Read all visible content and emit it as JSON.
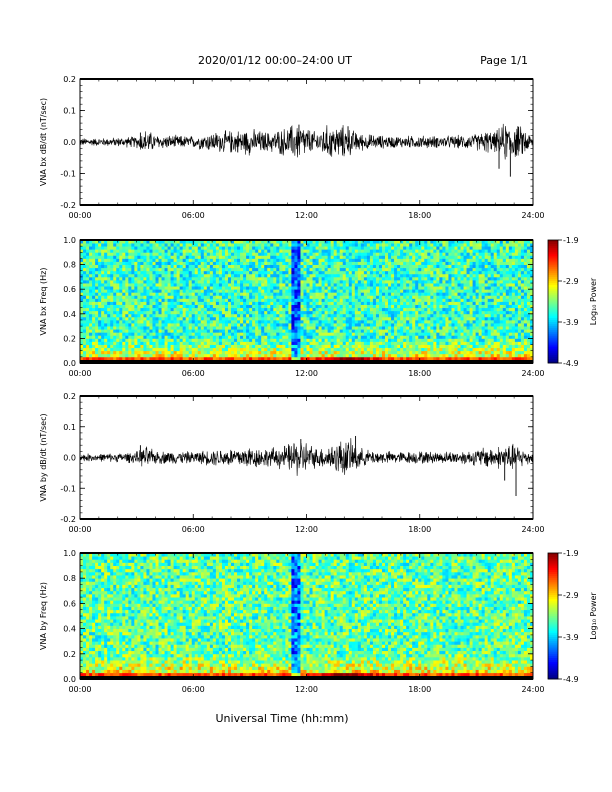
{
  "header": {
    "title": "2020/01/12  00:00–24:00 UT",
    "page": "Page 1/1"
  },
  "xaxis_label": "Universal Time (hh:mm)",
  "chart_data": [
    {
      "type": "line",
      "ylabel": "VNA bx dB/dt (nT/sec)",
      "ylim": [
        -0.2,
        0.2
      ],
      "yticks": [
        -0.2,
        -0.1,
        0.0,
        0.1,
        0.2
      ],
      "ytick_labels": [
        "-0.2",
        "-0.1",
        "0.0",
        "0.1",
        "0.2"
      ],
      "xlim": [
        0,
        24
      ],
      "xticks": [
        0,
        6,
        12,
        18,
        24
      ],
      "xtick_labels": [
        "00:00",
        "06:00",
        "12:00",
        "18:00",
        "24:00"
      ],
      "line_color": "#000000",
      "x_hours": [
        0,
        1,
        2,
        3,
        3.5,
        4,
        5,
        6,
        7,
        8,
        9,
        10,
        11,
        11.5,
        12,
        12.5,
        13,
        14,
        14.5,
        15,
        16,
        17,
        18,
        19,
        20,
        21,
        21.5,
        22,
        22.5,
        23,
        23.5,
        24
      ],
      "y_envelope": [
        0.012,
        0.012,
        0.014,
        0.018,
        0.04,
        0.022,
        0.02,
        0.018,
        0.03,
        0.035,
        0.04,
        0.03,
        0.045,
        0.06,
        0.045,
        0.03,
        0.05,
        0.05,
        0.035,
        0.025,
        0.02,
        0.018,
        0.02,
        0.018,
        0.02,
        0.025,
        0.035,
        0.03,
        0.06,
        0.05,
        0.045,
        0.015
      ],
      "spikes": [
        {
          "x": 3.2,
          "y": 0.03
        },
        {
          "x": 11.6,
          "y": 0.055
        },
        {
          "x": 14.2,
          "y": 0.05
        },
        {
          "x": 22.2,
          "y": -0.085
        },
        {
          "x": 22.8,
          "y": -0.11
        },
        {
          "x": 23.2,
          "y": 0.05
        }
      ]
    },
    {
      "type": "heatmap",
      "ylabel": "VNA bx Freq (Hz)",
      "ylim": [
        0.0,
        1.0
      ],
      "yticks": [
        0.0,
        0.2,
        0.4,
        0.6,
        0.8,
        1.0
      ],
      "ytick_labels": [
        "0.0",
        "0.2",
        "0.4",
        "0.6",
        "0.8",
        "1.0"
      ],
      "xlim": [
        0,
        24
      ],
      "xticks": [
        0,
        6,
        12,
        18,
        24
      ],
      "xtick_labels": [
        "00:00",
        "06:00",
        "12:00",
        "18:00",
        "24:00"
      ],
      "colorbar": {
        "label": "Log₁₀ Power",
        "range": [
          -4.9,
          -1.9
        ],
        "tick_labels": [
          "-1.9",
          "-2.9",
          "-3.9",
          "-4.9"
        ]
      },
      "typical_log_power": -3.6,
      "low_freq_log_power": -2.6,
      "notable_features": [
        {
          "x_hours": 11.5,
          "description": "Dark vertical band (low power) across all frequencies"
        },
        {
          "x_hours": 14.2,
          "description": "Enhanced power near 0 Hz"
        }
      ]
    },
    {
      "type": "line",
      "ylabel": "VNA by dB/dt (nT/sec)",
      "ylim": [
        -0.2,
        0.2
      ],
      "yticks": [
        -0.2,
        -0.1,
        0.0,
        0.1,
        0.2
      ],
      "ytick_labels": [
        "-0.2",
        "-0.1",
        "0.0",
        "0.1",
        "0.2"
      ],
      "xlim": [
        0,
        24
      ],
      "xticks": [
        0,
        6,
        12,
        18,
        24
      ],
      "xtick_labels": [
        "00:00",
        "06:00",
        "12:00",
        "18:00",
        "24:00"
      ],
      "line_color": "#000000",
      "x_hours": [
        0,
        1,
        2,
        3,
        3.5,
        4,
        5,
        6,
        7,
        8,
        9,
        10,
        11,
        11.5,
        12,
        12.5,
        13,
        14,
        14.5,
        15,
        16,
        17,
        18,
        19,
        20,
        21,
        21.5,
        22,
        22.5,
        23,
        23.5,
        24
      ],
      "y_envelope": [
        0.012,
        0.012,
        0.014,
        0.018,
        0.035,
        0.02,
        0.02,
        0.018,
        0.025,
        0.03,
        0.035,
        0.028,
        0.04,
        0.06,
        0.05,
        0.03,
        0.035,
        0.06,
        0.05,
        0.025,
        0.02,
        0.018,
        0.02,
        0.018,
        0.02,
        0.025,
        0.035,
        0.03,
        0.045,
        0.04,
        0.03,
        0.015
      ],
      "spikes": [
        {
          "x": 3.2,
          "y": 0.04
        },
        {
          "x": 11.7,
          "y": 0.06
        },
        {
          "x": 14.6,
          "y": 0.07
        },
        {
          "x": 22.5,
          "y": -0.075
        },
        {
          "x": 23.1,
          "y": -0.125
        }
      ]
    },
    {
      "type": "heatmap",
      "ylabel": "VNA by Freq (Hz)",
      "ylim": [
        0.0,
        1.0
      ],
      "yticks": [
        0.0,
        0.2,
        0.4,
        0.6,
        0.8,
        1.0
      ],
      "ytick_labels": [
        "0.0",
        "0.2",
        "0.4",
        "0.6",
        "0.8",
        "1.0"
      ],
      "xlim": [
        0,
        24
      ],
      "xticks": [
        0,
        6,
        12,
        18,
        24
      ],
      "xtick_labels": [
        "00:00",
        "06:00",
        "12:00",
        "18:00",
        "24:00"
      ],
      "colorbar": {
        "label": "Log₁₀ Power",
        "range": [
          -4.9,
          -1.9
        ],
        "tick_labels": [
          "-1.9",
          "-2.9",
          "-3.9",
          "-4.9"
        ]
      },
      "typical_log_power": -3.5,
      "low_freq_log_power": -2.6,
      "notable_features": [
        {
          "x_hours": 11.5,
          "description": "Dark vertical band (low power) across all frequencies"
        },
        {
          "x_hours": 14.2,
          "description": "Enhanced power near 0 Hz"
        }
      ]
    }
  ]
}
